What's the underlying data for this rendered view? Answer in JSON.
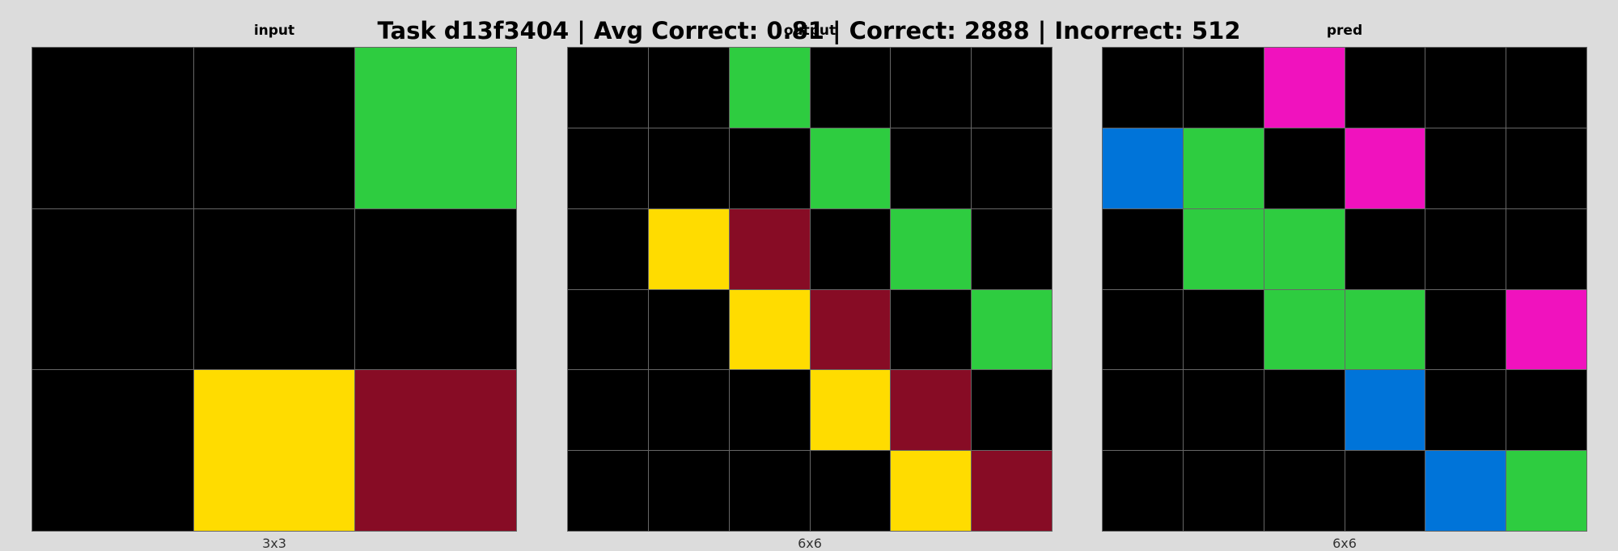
{
  "title": "Task d13f3404 | Avg Correct: 0.81 | Correct: 2888 | Incorrect: 512",
  "palette": {
    "0": "#000000",
    "1": "#0074D9",
    "2": "#FF4136",
    "3": "#2ECC40",
    "4": "#FFDC00",
    "5": "#AAAAAA",
    "6": "#F012BE",
    "7": "#FF851B",
    "8": "#7FDBFF",
    "9": "#870C25"
  },
  "panels": [
    {
      "name": "input",
      "title": "input",
      "size_label": "3x3",
      "grid": [
        [
          0,
          0,
          3
        ],
        [
          0,
          0,
          0
        ],
        [
          0,
          4,
          9
        ]
      ]
    },
    {
      "name": "output",
      "title": "output",
      "size_label": "6x6",
      "grid": [
        [
          0,
          0,
          3,
          0,
          0,
          0
        ],
        [
          0,
          0,
          0,
          3,
          0,
          0
        ],
        [
          0,
          4,
          9,
          0,
          3,
          0
        ],
        [
          0,
          0,
          4,
          9,
          0,
          3
        ],
        [
          0,
          0,
          0,
          4,
          9,
          0
        ],
        [
          0,
          0,
          0,
          0,
          4,
          9
        ]
      ]
    },
    {
      "name": "pred",
      "title": "pred",
      "size_label": "6x6",
      "grid": [
        [
          0,
          0,
          6,
          0,
          0,
          0
        ],
        [
          1,
          3,
          0,
          6,
          0,
          0
        ],
        [
          0,
          3,
          3,
          0,
          0,
          0
        ],
        [
          0,
          0,
          3,
          3,
          0,
          6
        ],
        [
          0,
          0,
          0,
          1,
          0,
          0
        ],
        [
          0,
          0,
          0,
          0,
          1,
          3
        ]
      ]
    }
  ]
}
